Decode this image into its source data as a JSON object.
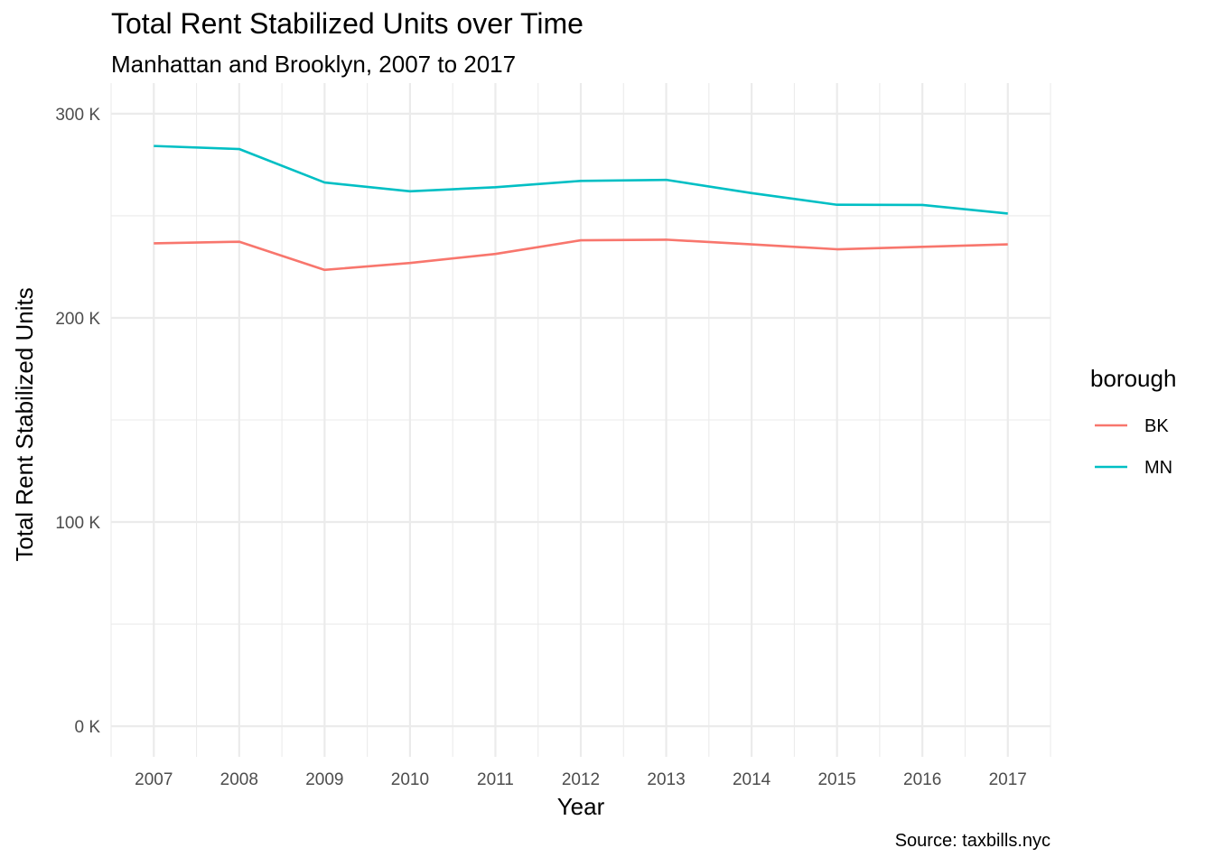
{
  "chart_data": {
    "type": "line",
    "title": "Total Rent Stabilized Units over Time",
    "subtitle": "Manhattan and Brooklyn, 2007 to 2017",
    "caption": "Source: taxbills.nyc",
    "xlabel": "Year",
    "ylabel": "Total Rent Stabilized Units",
    "x": [
      2007,
      2008,
      2009,
      2010,
      2011,
      2012,
      2013,
      2014,
      2015,
      2016,
      2017
    ],
    "x_tick_labels": [
      "2007",
      "2008",
      "2009",
      "2010",
      "2011",
      "2012",
      "2013",
      "2014",
      "2015",
      "2016",
      "2017"
    ],
    "xlim": [
      2006.5,
      2017.5
    ],
    "ylim": [
      -15000,
      315000
    ],
    "y_ticks": [
      0,
      100000,
      200000,
      300000
    ],
    "y_tick_labels": [
      "0 K",
      "100 K",
      "200 K",
      "300 K"
    ],
    "grid": true,
    "legend": {
      "title": "borough",
      "position": "right"
    },
    "series": [
      {
        "name": "BK",
        "color": "#F8766D",
        "values": [
          236500,
          237300,
          223500,
          226900,
          231300,
          238000,
          238300,
          236000,
          233600,
          234800,
          236000
        ]
      },
      {
        "name": "MN",
        "color": "#00BFC4",
        "values": [
          284200,
          282700,
          266300,
          262000,
          264000,
          267100,
          267600,
          261100,
          255400,
          255300,
          251100
        ]
      }
    ]
  }
}
